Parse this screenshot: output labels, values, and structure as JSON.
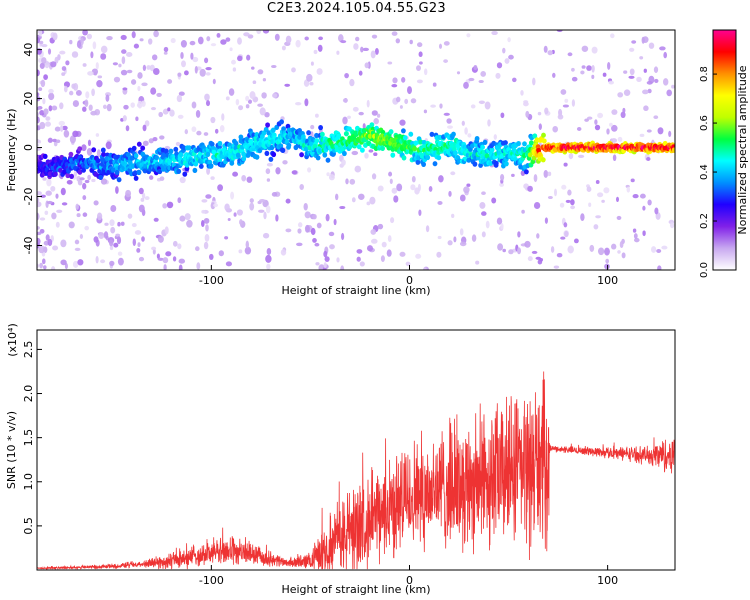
{
  "title": "C2E3.2024.105.04.55.G23",
  "chart_data": [
    {
      "type": "heatmap",
      "xlabel": "Height of straight line (km)",
      "ylabel": "Frequency (Hz)",
      "xlim": [
        -188,
        134
      ],
      "ylim": [
        -50,
        48
      ],
      "xticks": [
        -100,
        0,
        100
      ],
      "yticks": [
        -40,
        -20,
        0,
        20,
        40
      ],
      "colorbar": {
        "label": "Normalized spectral amplitude",
        "range": [
          0,
          0.98
        ],
        "ticks": [
          0.0,
          0.2,
          0.4,
          0.6,
          0.8
        ],
        "colormap": [
          "#ffffff",
          "#c8a8f0",
          "#8020e8",
          "#2000ff",
          "#0090ff",
          "#00ffff",
          "#00ff40",
          "#c0ff00",
          "#ffff00",
          "#ff9000",
          "#ff0000",
          "#ff0090"
        ]
      },
      "ridge": {
        "x": [
          -188,
          -175,
          -160,
          -150,
          -140,
          -130,
          -120,
          -110,
          -100,
          -90,
          -80,
          -70,
          -60,
          -50,
          -40,
          -30,
          -20,
          -10,
          0,
          10,
          20,
          30,
          40,
          50,
          60,
          65,
          70,
          80,
          90,
          100,
          110,
          120,
          134
        ],
        "frequency": [
          -8,
          -7,
          -6,
          -7,
          -6,
          -6,
          -5,
          -4,
          -3,
          -2,
          1,
          3,
          5,
          0,
          2,
          3,
          5,
          3,
          0,
          -1,
          1,
          -2,
          -3,
          -2,
          -3,
          -1,
          0,
          0,
          0,
          0,
          0,
          0,
          0
        ],
        "amplitude": [
          0.25,
          0.3,
          0.35,
          0.38,
          0.4,
          0.4,
          0.42,
          0.45,
          0.45,
          0.45,
          0.45,
          0.45,
          0.4,
          0.45,
          0.5,
          0.55,
          0.6,
          0.6,
          0.55,
          0.5,
          0.5,
          0.45,
          0.45,
          0.45,
          0.5,
          0.85,
          0.92,
          0.95,
          0.95,
          0.95,
          0.95,
          0.95,
          0.95
        ]
      }
    },
    {
      "type": "line",
      "xlabel": "Height of straight line (km)",
      "ylabel": "SNR (10 * v/v)",
      "scale_label": "(x10⁴)",
      "xlim": [
        -188,
        134
      ],
      "ylim": [
        0,
        2.72
      ],
      "xticks": [
        -100,
        0,
        100
      ],
      "yticks": [
        0.5,
        1.0,
        1.5,
        2.0,
        2.5
      ],
      "color": "#ee3333",
      "series": [
        {
          "x": [
            -188,
            -170,
            -150,
            -140,
            -130,
            -120,
            -110,
            -100,
            -90,
            -80,
            -70,
            -60,
            -50,
            -45,
            -40,
            -35,
            -30,
            -25,
            -20,
            -15,
            -10,
            -5,
            0,
            10,
            20,
            30,
            40,
            50,
            60,
            65,
            70,
            71,
            80,
            90,
            100,
            110,
            120,
            125,
            130,
            134
          ],
          "y": [
            0.02,
            0.03,
            0.04,
            0.06,
            0.08,
            0.1,
            0.15,
            0.2,
            0.22,
            0.18,
            0.12,
            0.08,
            0.1,
            0.2,
            0.3,
            0.35,
            0.45,
            0.5,
            0.55,
            0.6,
            0.7,
            0.75,
            0.85,
            0.9,
            0.95,
            1.0,
            1.05,
            1.1,
            1.15,
            1.2,
            1.2,
            1.38,
            1.36,
            1.35,
            1.33,
            1.32,
            1.3,
            1.3,
            1.3,
            1.3
          ],
          "spread": [
            0.01,
            0.02,
            0.03,
            0.05,
            0.07,
            0.12,
            0.15,
            0.18,
            0.2,
            0.15,
            0.1,
            0.06,
            0.12,
            0.3,
            0.4,
            0.5,
            0.6,
            0.6,
            0.55,
            0.6,
            0.65,
            0.7,
            0.75,
            0.8,
            0.85,
            0.9,
            0.95,
            1.0,
            1.1,
            1.15,
            1.1,
            0.04,
            0.05,
            0.06,
            0.08,
            0.1,
            0.12,
            0.2,
            0.25,
            0.25
          ]
        }
      ]
    }
  ]
}
